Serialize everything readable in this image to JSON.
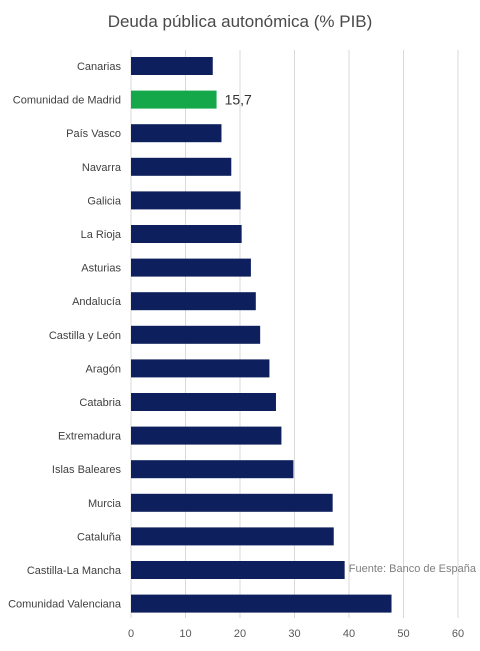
{
  "chart_data": {
    "type": "bar",
    "orientation": "horizontal",
    "title": "Deuda pública autonómica (% PIB)",
    "source": "Fuente: Banco de España",
    "categories": [
      "Canarias",
      "Comunidad de Madrid",
      "País Vasco",
      "Navarra",
      "Galicia",
      "La Rioja",
      "Asturias",
      "Andalucía",
      "Castilla y León",
      "Aragón",
      "Catabria",
      "Extremadura",
      "Islas Baleares",
      "Murcia",
      "Cataluña",
      "Castilla-La Mancha",
      "Comunidad Valenciana"
    ],
    "values": [
      15.0,
      15.7,
      16.6,
      18.4,
      20.1,
      20.3,
      22.0,
      22.9,
      23.7,
      25.4,
      26.6,
      27.6,
      29.8,
      37.0,
      37.2,
      39.2,
      47.8
    ],
    "highlight_index": 1,
    "data_labels": [
      {
        "index": 1,
        "text": "15,7"
      }
    ],
    "xlim": [
      0,
      60
    ],
    "xticks": [
      0,
      10,
      20,
      30,
      40,
      50,
      60
    ],
    "grid": true,
    "colors": {
      "bar": "#0d1f5c",
      "highlight": "#15a84a",
      "grid": "#d9d9d9"
    }
  }
}
